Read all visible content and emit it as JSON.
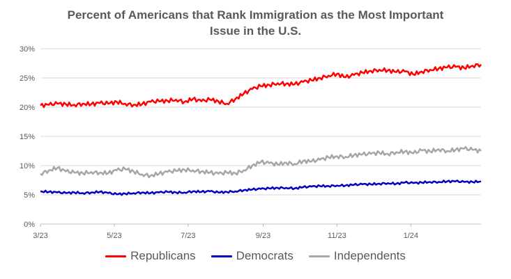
{
  "chart_data": {
    "type": "line",
    "title": "Percent of Americans that Rank Immigration as the Most Important Issue in the U.S.",
    "title_lines": [
      "Percent of Americans that Rank Immigration as the Most Important",
      "Issue in the U.S."
    ],
    "x_ticks": [
      "3/23",
      "5/23",
      "7/23",
      "9/23",
      "11/23",
      "1/24"
    ],
    "y_ticks": [
      "0%",
      "5%",
      "10%",
      "15%",
      "20%",
      "25%",
      "30%"
    ],
    "ylim": [
      0,
      30
    ],
    "xlim": [
      "2023-03-01",
      "2024-02-28"
    ],
    "grid": true,
    "legend_position": "bottom",
    "series": [
      {
        "name": "Republicans",
        "color": "#ff0000",
        "x": [
          "2023-03-01",
          "2023-03-08",
          "2023-03-15",
          "2023-03-22",
          "2023-03-29",
          "2023-04-05",
          "2023-04-12",
          "2023-04-19",
          "2023-04-26",
          "2023-05-03",
          "2023-05-10",
          "2023-05-17",
          "2023-05-24",
          "2023-05-31",
          "2023-06-07",
          "2023-06-14",
          "2023-06-21",
          "2023-06-28",
          "2023-07-05",
          "2023-07-12",
          "2023-07-19",
          "2023-07-26",
          "2023-08-02",
          "2023-08-09",
          "2023-08-16",
          "2023-08-23",
          "2023-08-30",
          "2023-09-06",
          "2023-09-13",
          "2023-09-20",
          "2023-09-27",
          "2023-10-04",
          "2023-10-11",
          "2023-10-18",
          "2023-10-25",
          "2023-11-01",
          "2023-11-08",
          "2023-11-15",
          "2023-11-22",
          "2023-11-29",
          "2023-12-06",
          "2023-12-13",
          "2023-12-20",
          "2023-12-27",
          "2024-01-03",
          "2024-01-10",
          "2024-01-17",
          "2024-01-24",
          "2024-01-31",
          "2024-02-07",
          "2024-02-14",
          "2024-02-21",
          "2024-02-28"
        ],
        "values": [
          20.3,
          20.4,
          20.6,
          20.5,
          20.4,
          20.6,
          20.5,
          20.7,
          20.6,
          20.9,
          20.6,
          20.4,
          20.5,
          20.9,
          21.0,
          21.1,
          21.3,
          20.9,
          21.4,
          21.0,
          21.3,
          21.0,
          20.6,
          21.4,
          22.3,
          23.1,
          23.6,
          23.8,
          24.1,
          24.0,
          23.9,
          24.3,
          24.6,
          25.0,
          25.4,
          25.7,
          25.1,
          25.5,
          25.9,
          26.2,
          26.4,
          26.3,
          26.0,
          26.1,
          25.6,
          26.1,
          26.4,
          26.6,
          26.8,
          26.9,
          26.7,
          27.1,
          27.3
        ]
      },
      {
        "name": "Democrats",
        "color": "#0000bf",
        "x": [
          "2023-03-01",
          "2023-03-08",
          "2023-03-15",
          "2023-03-22",
          "2023-03-29",
          "2023-04-05",
          "2023-04-12",
          "2023-04-19",
          "2023-04-26",
          "2023-05-03",
          "2023-05-10",
          "2023-05-17",
          "2023-05-24",
          "2023-05-31",
          "2023-06-07",
          "2023-06-14",
          "2023-06-21",
          "2023-06-28",
          "2023-07-05",
          "2023-07-12",
          "2023-07-19",
          "2023-07-26",
          "2023-08-02",
          "2023-08-09",
          "2023-08-16",
          "2023-08-23",
          "2023-08-30",
          "2023-09-06",
          "2023-09-13",
          "2023-09-20",
          "2023-09-27",
          "2023-10-04",
          "2023-10-11",
          "2023-10-18",
          "2023-10-25",
          "2023-11-01",
          "2023-11-08",
          "2023-11-15",
          "2023-11-22",
          "2023-11-29",
          "2023-12-06",
          "2023-12-13",
          "2023-12-20",
          "2023-12-27",
          "2024-01-03",
          "2024-01-10",
          "2024-01-17",
          "2024-01-24",
          "2024-01-31",
          "2024-02-07",
          "2024-02-14",
          "2024-02-21",
          "2024-02-28"
        ],
        "values": [
          5.6,
          5.5,
          5.4,
          5.3,
          5.4,
          5.3,
          5.4,
          5.5,
          5.3,
          5.1,
          5.2,
          5.3,
          5.4,
          5.3,
          5.4,
          5.5,
          5.4,
          5.4,
          5.6,
          5.5,
          5.6,
          5.4,
          5.5,
          5.6,
          5.8,
          5.9,
          6.0,
          6.1,
          6.2,
          6.2,
          6.1,
          6.3,
          6.4,
          6.5,
          6.5,
          6.6,
          6.6,
          6.7,
          6.8,
          6.8,
          6.9,
          7.0,
          6.9,
          7.1,
          7.0,
          7.1,
          7.2,
          7.2,
          7.3,
          7.3,
          7.2,
          7.2,
          7.3
        ]
      },
      {
        "name": "Independents",
        "color": "#a6a6a6",
        "x": [
          "2023-03-01",
          "2023-03-08",
          "2023-03-15",
          "2023-03-22",
          "2023-03-29",
          "2023-04-05",
          "2023-04-12",
          "2023-04-19",
          "2023-04-26",
          "2023-05-03",
          "2023-05-10",
          "2023-05-17",
          "2023-05-24",
          "2023-05-31",
          "2023-06-07",
          "2023-06-14",
          "2023-06-21",
          "2023-06-28",
          "2023-07-05",
          "2023-07-12",
          "2023-07-19",
          "2023-07-26",
          "2023-08-02",
          "2023-08-09",
          "2023-08-16",
          "2023-08-23",
          "2023-08-30",
          "2023-09-06",
          "2023-09-13",
          "2023-09-20",
          "2023-09-27",
          "2023-10-04",
          "2023-10-11",
          "2023-10-18",
          "2023-10-25",
          "2023-11-01",
          "2023-11-08",
          "2023-11-15",
          "2023-11-22",
          "2023-11-29",
          "2023-12-06",
          "2023-12-13",
          "2023-12-20",
          "2023-12-27",
          "2024-01-03",
          "2024-01-10",
          "2024-01-17",
          "2024-01-24",
          "2024-01-31",
          "2024-02-07",
          "2024-02-14",
          "2024-02-21",
          "2024-02-28"
        ],
        "values": [
          8.6,
          9.2,
          9.6,
          9.0,
          8.8,
          8.7,
          8.9,
          8.8,
          8.7,
          9.2,
          9.4,
          9.0,
          8.5,
          8.3,
          8.6,
          8.9,
          9.1,
          9.3,
          9.2,
          9.0,
          8.8,
          8.6,
          8.8,
          8.7,
          9.2,
          10.0,
          10.6,
          10.4,
          10.2,
          10.5,
          10.3,
          10.8,
          10.7,
          11.0,
          11.4,
          11.6,
          11.5,
          11.8,
          11.9,
          12.0,
          12.2,
          12.0,
          12.3,
          12.4,
          12.1,
          12.6,
          12.4,
          12.8,
          12.5,
          12.7,
          12.9,
          12.7,
          12.5
        ]
      }
    ]
  }
}
